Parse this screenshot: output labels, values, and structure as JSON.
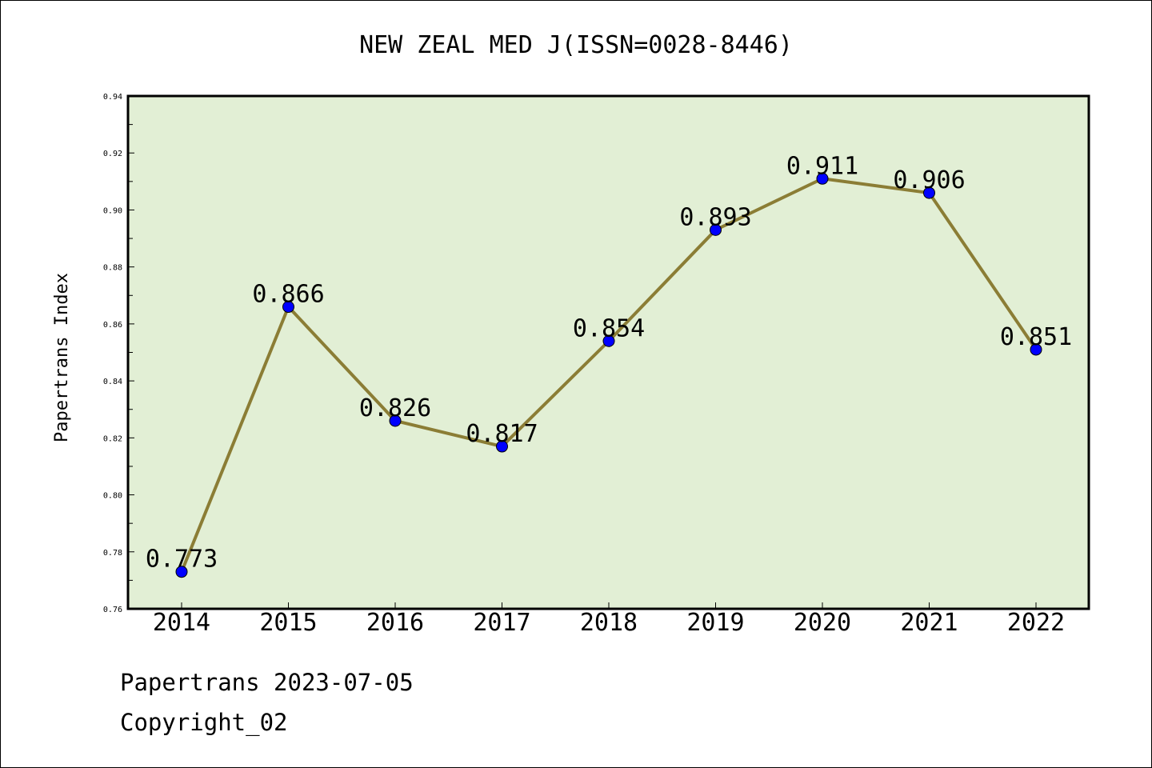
{
  "footer": {
    "line1": "Papertrans 2023-07-05",
    "line2": "Copyright_02"
  },
  "colors": {
    "plot_background": "#e2efd5",
    "line": "#8b7d35",
    "marker": "#0000ff"
  },
  "chart_data": {
    "type": "line",
    "title": "NEW ZEAL MED J(ISSN=0028-8446)",
    "xlabel": "",
    "ylabel": "Papertrans Index",
    "categories": [
      "2014",
      "2015",
      "2016",
      "2017",
      "2018",
      "2019",
      "2020",
      "2021",
      "2022"
    ],
    "series": [
      {
        "values": [
          0.773,
          0.866,
          0.826,
          0.817,
          0.854,
          0.893,
          0.911,
          0.906,
          0.851
        ],
        "labels": [
          "0.773",
          "0.866",
          "0.826",
          "0.817",
          "0.854",
          "0.893",
          "0.911",
          "0.906",
          "0.851"
        ]
      }
    ],
    "ylim": [
      0.76,
      0.94
    ],
    "yticks": [
      0.76,
      0.78,
      0.8,
      0.82,
      0.84,
      0.86,
      0.88,
      0.9,
      0.92,
      0.94
    ],
    "ytick_labels": [
      "0.76",
      "0.78",
      "0.80",
      "0.82",
      "0.84",
      "0.86",
      "0.88",
      "0.90",
      "0.92",
      "0.94"
    ],
    "grid": false,
    "legend": "none"
  }
}
